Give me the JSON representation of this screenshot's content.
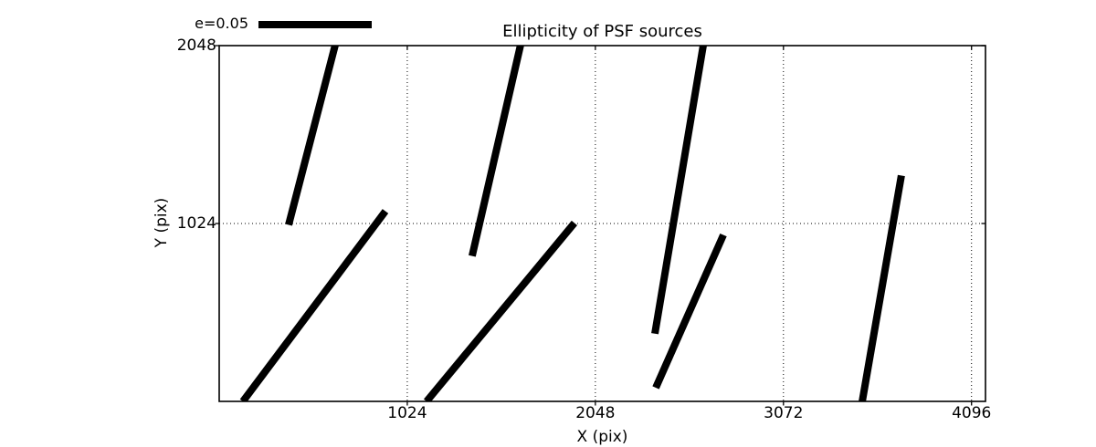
{
  "chart_data": {
    "type": "line-segments",
    "description": "PSF ellipticity whisker plot: thick black segments showing ellipticity direction/magnitude of PSF sources across the detector",
    "title": "Ellipticity of PSF sources",
    "xlabel": "X (pix)",
    "ylabel": "Y (pix)",
    "xlim": [
      0,
      4172
    ],
    "ylim": [
      0,
      2048
    ],
    "xticks": [
      1024,
      2048,
      3072,
      4096
    ],
    "yticks": [
      1024,
      2048
    ],
    "grid": {
      "visible": true,
      "style": "dotted",
      "color": "#000000"
    },
    "line_color": "#000000",
    "background_color": "#ffffff",
    "legend": {
      "label": "e=0.05",
      "position": "top-left-above-axes"
    },
    "segments": [
      {
        "x1": 378,
        "y1": 1016,
        "x2": 632,
        "y2": 2053
      },
      {
        "x1": 129,
        "y1": 0,
        "x2": 905,
        "y2": 1095
      },
      {
        "x1": 1377,
        "y1": 837,
        "x2": 1641,
        "y2": 2053
      },
      {
        "x1": 1129,
        "y1": 0,
        "x2": 1934,
        "y2": 1027
      },
      {
        "x1": 2372,
        "y1": 390,
        "x2": 2636,
        "y2": 2053
      },
      {
        "x1": 2377,
        "y1": 79,
        "x2": 2745,
        "y2": 958
      },
      {
        "x1": 3501,
        "y1": 0,
        "x2": 3714,
        "y2": 1300
      }
    ]
  }
}
